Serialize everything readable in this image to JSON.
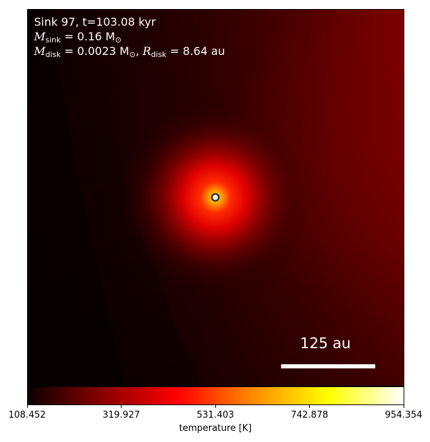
{
  "chart_data": {
    "type": "heatmap",
    "title": "",
    "annotations": {
      "line1": "Sink 97, t=103.08 kyr",
      "msink_symbol": "M",
      "msink_sub": "sink",
      "msink_value": " = 0.16 M",
      "msink_unit_sub": "⊙",
      "mdisk_symbol": "M",
      "mdisk_sub": "disk",
      "mdisk_value": " = 0.0023 M",
      "mdisk_unit_sub": "⊙",
      "separator": ", ",
      "rdisk_symbol": "R",
      "rdisk_sub": "disk",
      "rdisk_value": " = 8.64 au"
    },
    "scale_bar": {
      "label": "125 au",
      "length_au": 125
    },
    "colorbar": {
      "label": "temperature [K]",
      "colormap": "hot",
      "min": 108.452,
      "max": 954.354,
      "ticks": [
        "108.452",
        "319.927",
        "531.403",
        "742.878",
        "954.354"
      ]
    },
    "sink_marker": {
      "color": "#ffffff",
      "edge": "#333333"
    },
    "field": {
      "background_K": 160,
      "center_peak_K": 954.354,
      "description_values": [
        "cool dark left region",
        "hot core at sink",
        "warm right edge"
      ]
    },
    "colors": {
      "hot_stops": [
        "#0b0000",
        "#8b0000",
        "#ff0000",
        "#ff8c00",
        "#ffff00",
        "#ffffff"
      ]
    }
  }
}
